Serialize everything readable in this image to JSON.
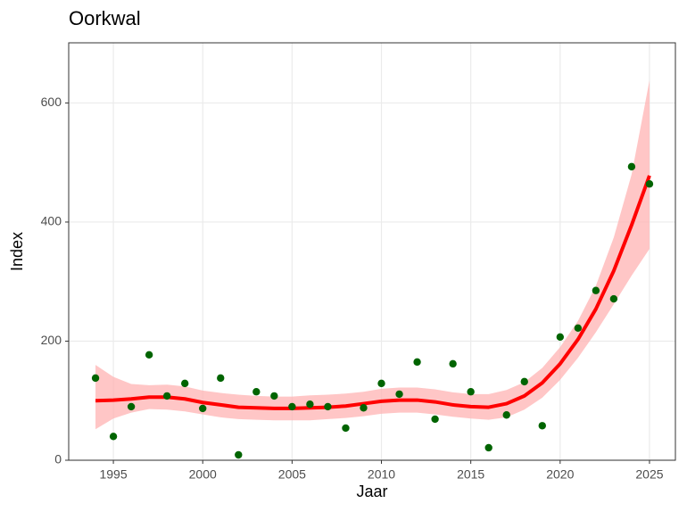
{
  "chart_data": {
    "type": "scatter-smooth",
    "title": "Oorkwal",
    "x_label": "Jaar",
    "y_label": "Index",
    "x": [
      1994,
      1995,
      1996,
      1997,
      1998,
      1999,
      2000,
      2001,
      2002,
      2003,
      2004,
      2005,
      2006,
      2007,
      2008,
      2009,
      2010,
      2011,
      2012,
      2013,
      2014,
      2015,
      2016,
      2017,
      2018,
      2019,
      2020,
      2021,
      2022,
      2023,
      2024,
      2025
    ],
    "points": {
      "color": "#006400",
      "values": [
        138,
        40,
        90,
        177,
        108,
        129,
        87,
        138,
        9,
        115,
        108,
        90,
        94,
        90,
        54,
        88,
        129,
        111,
        165,
        69,
        162,
        115,
        21,
        76,
        132,
        58,
        207,
        222,
        285,
        271,
        493,
        464
      ]
    },
    "smooth": {
      "color": "#ff0000",
      "band_color": "#ffb3b3",
      "values": [
        100,
        101,
        103,
        106,
        106,
        103,
        97,
        93,
        89,
        88,
        87,
        87,
        88,
        89,
        91,
        95,
        99,
        101,
        101,
        98,
        93,
        90,
        89,
        95,
        108,
        130,
        162,
        203,
        254,
        318,
        395,
        478
      ],
      "lower": [
        52,
        70,
        80,
        86,
        85,
        82,
        77,
        72,
        69,
        68,
        67,
        67,
        67,
        69,
        71,
        74,
        78,
        80,
        80,
        77,
        73,
        70,
        68,
        72,
        85,
        105,
        135,
        172,
        215,
        262,
        310,
        355
      ],
      "upper": [
        160,
        140,
        128,
        126,
        127,
        124,
        117,
        113,
        110,
        108,
        107,
        107,
        109,
        110,
        112,
        115,
        120,
        122,
        122,
        119,
        114,
        111,
        111,
        118,
        131,
        155,
        190,
        234,
        293,
        374,
        480,
        638
      ]
    },
    "xlim": [
      1992.5,
      2026.45
    ],
    "xticks": [
      1995,
      2000,
      2005,
      2010,
      2015,
      2020,
      2025
    ],
    "ylim": [
      0,
      701
    ],
    "yticks": [
      0,
      200,
      400,
      600
    ],
    "grid": true
  }
}
